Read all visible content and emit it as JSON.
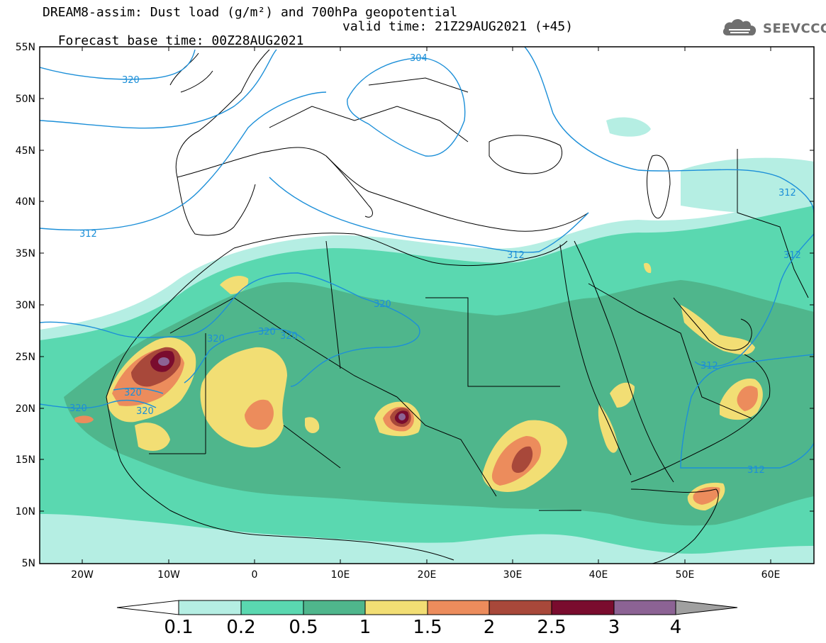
{
  "title": {
    "line1": "DREAM8-assim: Dust load (g/m²) and 700hPa geopotential",
    "line2_left": "Forecast base time: 00Z28AUG2021",
    "line2_right": "valid time: 21Z29AUG2021 (+45)"
  },
  "logo": {
    "text": "SEEVCCC",
    "icon": "cloud-logo-icon",
    "color": "#6f6f6f"
  },
  "map": {
    "extent": {
      "lon": [
        -25,
        65
      ],
      "lat": [
        5,
        55
      ]
    },
    "lat_labels": [
      "55N",
      "50N",
      "45N",
      "40N",
      "35N",
      "30N",
      "25N",
      "20N",
      "15N",
      "10N",
      "5N"
    ],
    "lon_labels": [
      "20W",
      "10W",
      "0",
      "10E",
      "20E",
      "30E",
      "40E",
      "50E",
      "60E"
    ],
    "contour_labels": [
      "320",
      "304",
      "312",
      "312",
      "312",
      "312",
      "320",
      "320",
      "320",
      "320",
      "320",
      "320",
      "320",
      "312",
      "312"
    ],
    "contour_color": "#1c8fd8"
  },
  "colorbar": {
    "labels": [
      "0.1",
      "0.2",
      "0.5",
      "1",
      "1.5",
      "2",
      "2.5",
      "3",
      "4"
    ],
    "colors": [
      "#b5eee3",
      "#5ad8b0",
      "#4fb68c",
      "#f2de74",
      "#ec8c5c",
      "#a8483a",
      "#7a0c2e",
      "#8c6394",
      "#a0a0a0"
    ]
  }
}
